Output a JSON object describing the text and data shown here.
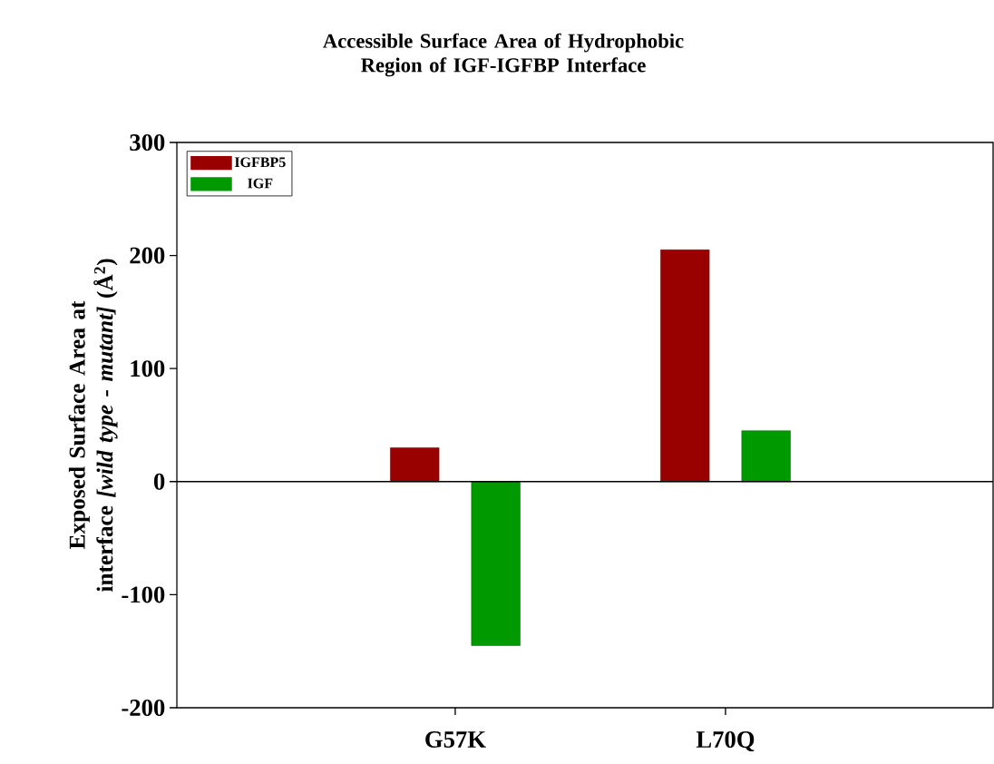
{
  "chart_data": {
    "type": "bar",
    "title": "Accessible Surface Area of Hydrophobic Region of IGF-IGFBP Interface",
    "ylabel": "Exposed  Surface Area at interface *[wild type - mutant]* (Å$^{2}$)",
    "categories": [
      "G57K",
      "L70Q"
    ],
    "series": [
      {
        "name": "IGFBP5",
        "color": "#990000",
        "values": [
          30,
          205
        ]
      },
      {
        "name": "IGF",
        "color": "#009900",
        "values": [
          -145,
          45
        ]
      }
    ],
    "ylim": [
      -200,
      300
    ],
    "yticks": [
      -200,
      -100,
      0,
      100,
      200,
      300
    ],
    "legend": "top left"
  }
}
